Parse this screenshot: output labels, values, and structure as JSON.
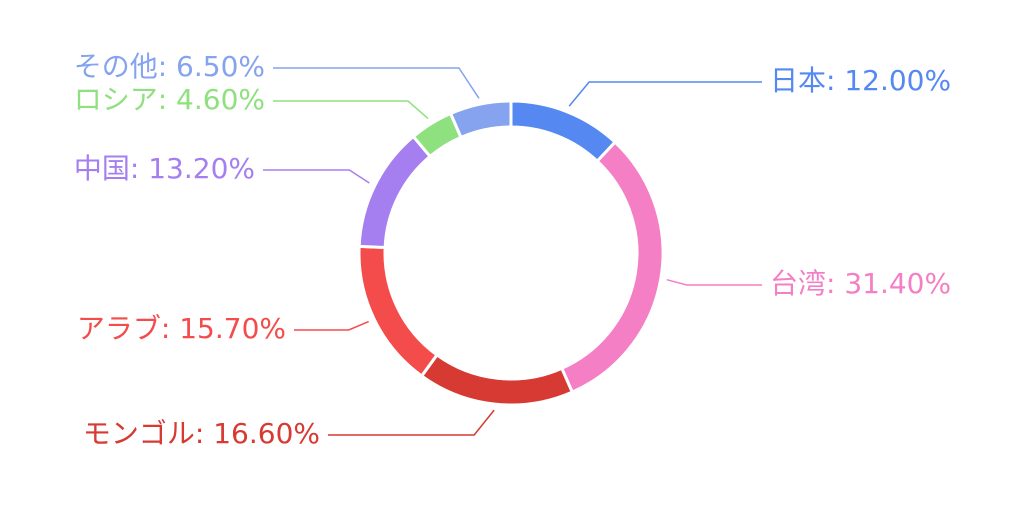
{
  "chart_data": {
    "type": "donut",
    "categories": [
      "日本",
      "台湾",
      "モンゴル",
      "アラブ",
      "中国",
      "ロシア",
      "その他"
    ],
    "values": [
      12.0,
      31.4,
      16.6,
      15.7,
      13.2,
      4.6,
      6.5
    ],
    "value_labels": [
      "日本: 12.00%",
      "台湾: 31.40%",
      "モンゴル: 16.60%",
      "アラブ: 15.70%",
      "中国: 13.20%",
      "ロシア: 4.60%",
      "その他: 6.50%"
    ],
    "colors": [
      "#5588f0",
      "#f47fc4",
      "#d63a32",
      "#f44b4b",
      "#a57ff0",
      "#8fe07f",
      "#85a3ef"
    ]
  }
}
